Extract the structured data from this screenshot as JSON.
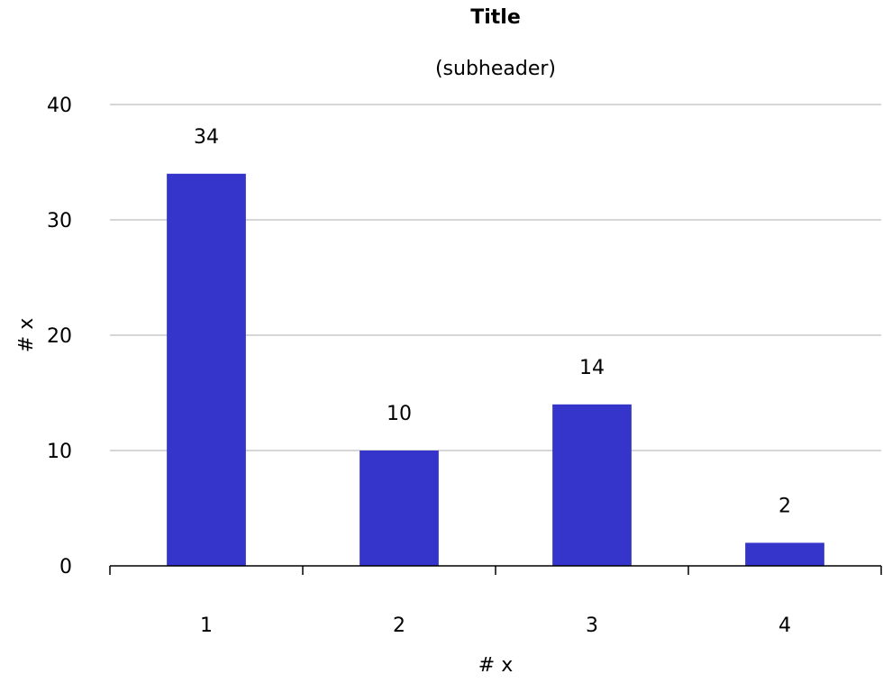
{
  "chart_data": {
    "type": "bar",
    "title": "Title",
    "subtitle": "(subheader)",
    "xlabel": "# x",
    "ylabel": "# x",
    "categories": [
      "1",
      "2",
      "3",
      "4"
    ],
    "values": [
      34,
      10,
      14,
      2
    ],
    "data_labels": [
      "34",
      "10",
      "14",
      "2"
    ],
    "ylim": [
      0,
      40
    ],
    "yticks": [
      0,
      10,
      20,
      30,
      40
    ],
    "ytick_labels": [
      "0",
      "10",
      "20",
      "30",
      "40"
    ],
    "grid": true,
    "legend": "none",
    "colors": {
      "bar": "#3535cc",
      "grid": "#c8c8c8",
      "axis": "#000000"
    }
  }
}
